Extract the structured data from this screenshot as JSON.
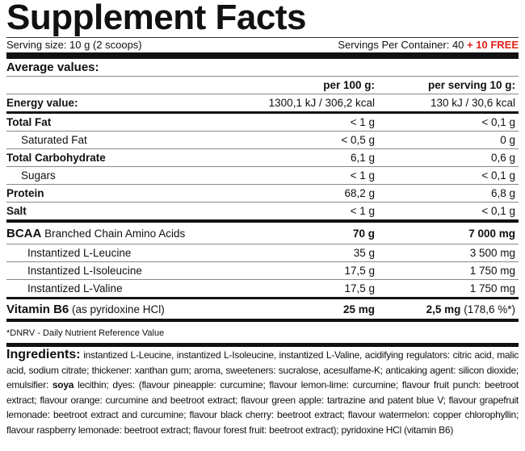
{
  "title": "Supplement Facts",
  "serving_size": "Serving size: 10 g (2 scoops)",
  "servings_per_container": "Servings Per Container: 40",
  "free_note": "+ 10 FREE",
  "table": {
    "section_title": "Average values:",
    "headers": [
      "per 100 g:",
      "per serving 10 g:"
    ],
    "rows": [
      {
        "label": "Energy value:",
        "per_100g": "1300,1 kJ / 306,2 kcal",
        "per_serving": "130 kJ / 30,6 kcal"
      },
      {
        "label": "Total Fat",
        "per_100g": "< 1 g",
        "per_serving": "< 0,1 g"
      },
      {
        "label": "Saturated Fat",
        "per_100g": "< 0,5 g",
        "per_serving": "0 g"
      },
      {
        "label": "Total Carbohydrate",
        "per_100g": "6,1 g",
        "per_serving": "0,6 g"
      },
      {
        "label": "Sugars",
        "per_100g": "< 1 g",
        "per_serving": "< 0,1 g"
      },
      {
        "label": "Protein",
        "per_100g": "68,2 g",
        "per_serving": "6,8 g"
      },
      {
        "label": "Salt",
        "per_100g": "< 1 g",
        "per_serving": "< 0,1 g"
      },
      {
        "label": "BCAA",
        "sublabel": "Branched Chain Amino Acids",
        "per_100g": "70 g",
        "per_serving": "7 000 mg"
      },
      {
        "label": "Instantized L-Leucine",
        "per_100g": "35 g",
        "per_serving": "3 500 mg"
      },
      {
        "label": "Instantized L-Isoleucine",
        "per_100g": "17,5 g",
        "per_serving": "1 750 mg"
      },
      {
        "label": "Instantized L-Valine",
        "per_100g": "17,5 g",
        "per_serving": "1 750 mg"
      },
      {
        "label": "Vitamin B6",
        "sublabel": "(as pyridoxine HCl)",
        "per_100g": "25 mg",
        "per_serving": "2,5 mg",
        "per_serving_note": "(178,6 %*)"
      }
    ]
  },
  "dnrv_note": "*DNRV - Daily Nutrient Reference Value",
  "ingredients": {
    "heading": "Ingredients:",
    "text_1": "instantized L-Leucine, instantized L-Isoleucine, instantized L-Valine, acidifying regulators: citric acid, malic acid, sodium citrate; thickener: xanthan gum; aroma, sweeteners: sucralose, acesulfame-K; anticaking agent: silicon dioxide; emulsifier:",
    "emphasis": "soya",
    "text_2": "lecithin; dyes: (flavour pineapple: curcumine; flavour lemon-lime: curcumine; flavour fruit punch: beetroot extract; flavour orange: curcumine and beetroot extract; flavour green apple: tartrazine and patent blue V; flavour grapefruit lemonade: beetroot extract and curcumine; flavour black cherry: beetroot extract; flavour watermelon: copper chlorophyllin; flavour raspberry lemonade: beetroot extract; flavour forest fruit: beetroot extract); pyridoxine HCl (vitamin B6)"
  }
}
